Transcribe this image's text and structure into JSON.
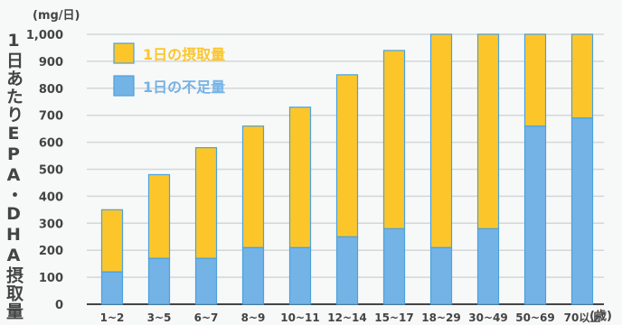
{
  "chart_data": {
    "type": "bar",
    "stacked": true,
    "unit": "(mg/日)",
    "xunit": "(歳)",
    "ylabel": "1日あたりEPA・DHA摂取量",
    "ylim": [
      0,
      1000
    ],
    "yticks": [
      "0",
      "100",
      "200",
      "300",
      "400",
      "500",
      "600",
      "700",
      "800",
      "900",
      "1,000"
    ],
    "categories": [
      "1~2",
      "3~5",
      "6~7",
      "8~9",
      "10~11",
      "12~14",
      "15~17",
      "18~29",
      "30~49",
      "50~69",
      "70以上"
    ],
    "series": [
      {
        "name": "1日の不足量",
        "color": "#74b3e6",
        "values": [
          120,
          170,
          170,
          210,
          210,
          250,
          280,
          210,
          280,
          660,
          690
        ]
      },
      {
        "name": "1日の摂取量",
        "color": "#fcc62b",
        "values": [
          230,
          310,
          410,
          450,
          520,
          600,
          660,
          790,
          720,
          340,
          310
        ]
      }
    ],
    "legend_position": "top-left",
    "grid": true
  }
}
